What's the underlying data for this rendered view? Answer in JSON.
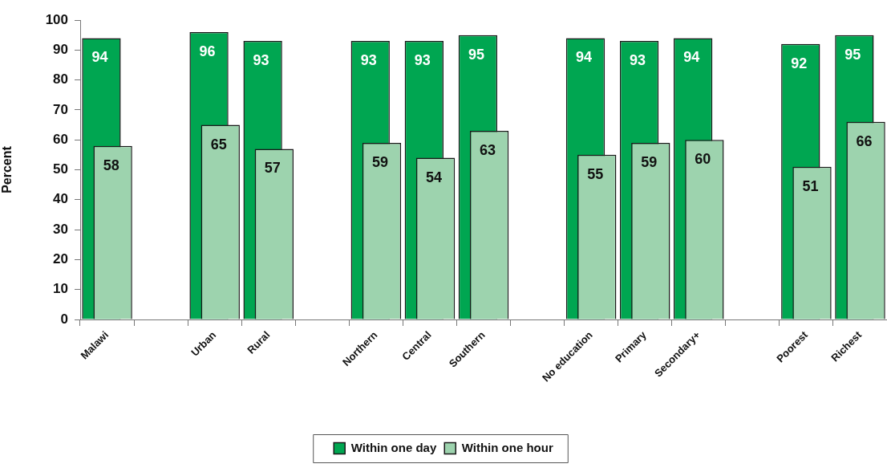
{
  "chart_data": {
    "type": "bar",
    "ylabel": "Percent",
    "categories": [
      "Malawi",
      null,
      "Urban",
      "Rural",
      null,
      "Northern",
      "Central",
      "Southern",
      null,
      "No education",
      "Primary",
      "Secondary+",
      null,
      "Poorest",
      "Richest"
    ],
    "series": [
      {
        "name": "Within one day",
        "color": "#00a651",
        "values": [
          94,
          null,
          96,
          93,
          null,
          93,
          93,
          95,
          null,
          94,
          93,
          94,
          null,
          92,
          95
        ]
      },
      {
        "name": "Within one hour",
        "color": "#9dd3ae",
        "values": [
          58,
          null,
          65,
          57,
          null,
          59,
          54,
          63,
          null,
          55,
          59,
          60,
          null,
          51,
          66
        ]
      }
    ],
    "ylim": [
      0,
      100
    ],
    "yticks": [
      0,
      10,
      20,
      30,
      40,
      50,
      60,
      70,
      80,
      90,
      100
    ],
    "legend": "bottom",
    "data_labels": true
  }
}
